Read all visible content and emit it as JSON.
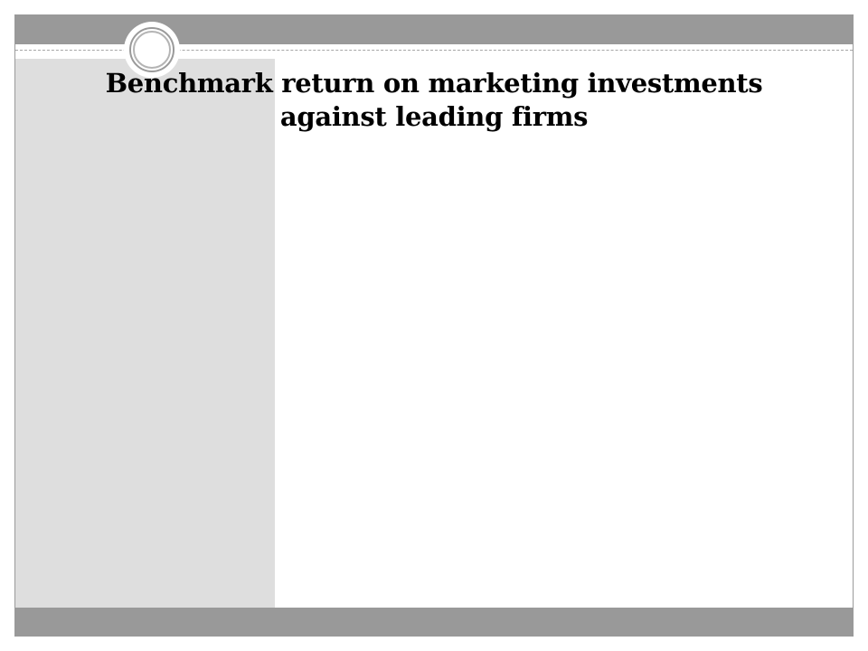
{
  "slide": {
    "title": "Benchmark return on marketing investments against leading firms"
  },
  "colors": {
    "band": "#999999",
    "side_panel": "#dedede",
    "background": "#ffffff",
    "ornament_ring": "#9a9a9a",
    "title_text": "#000000"
  },
  "icons": {
    "ornament": "double-ring-circle-icon"
  }
}
